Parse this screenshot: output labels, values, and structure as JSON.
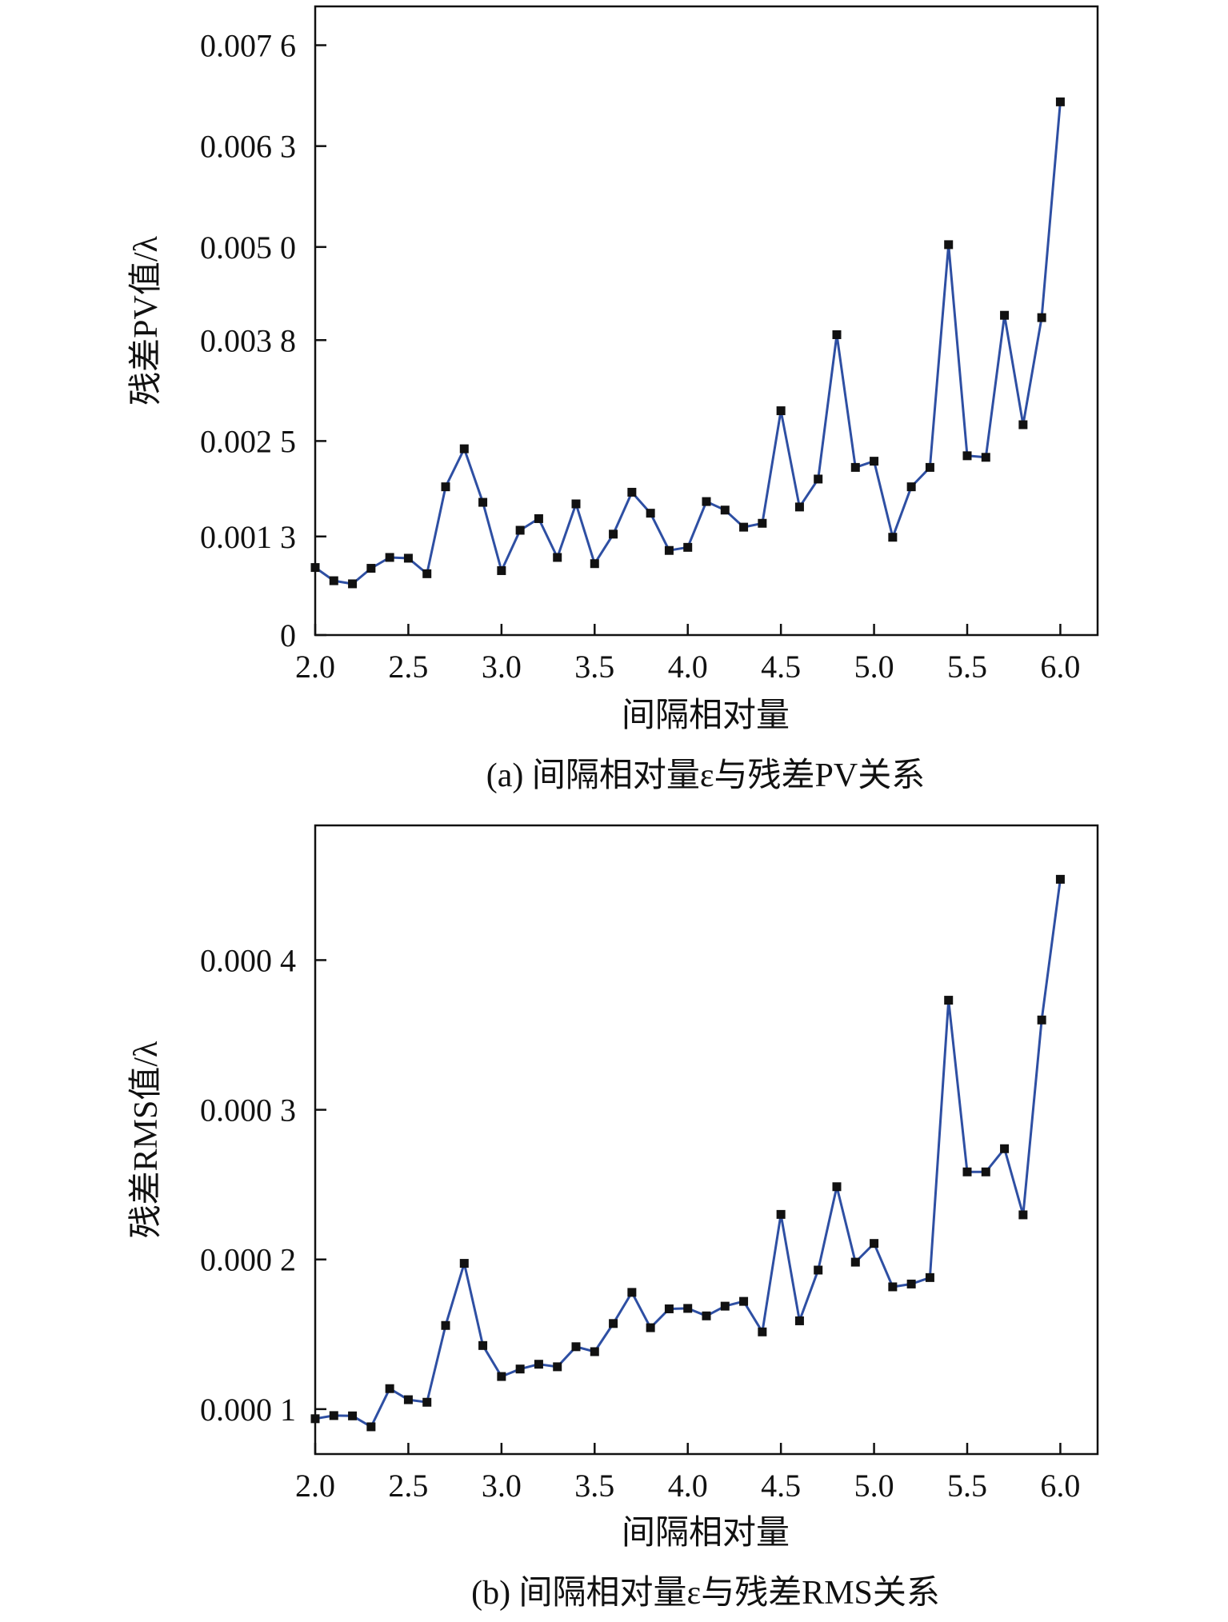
{
  "chart_data": [
    {
      "type": "line",
      "caption": "(a) 间隔相对量ε与残差PV关系",
      "xlabel": "间隔相对量",
      "ylabel": "残差PV值/λ",
      "xlim": [
        2.0,
        6.2
      ],
      "ylim": [
        0,
        0.0081
      ],
      "xticks": [
        2.0,
        2.5,
        3.0,
        3.5,
        4.0,
        4.5,
        5.0,
        5.5,
        6.0
      ],
      "xtick_labels": [
        "2.0",
        "2.5",
        "3.0",
        "3.5",
        "4.0",
        "4.5",
        "5.0",
        "5.5",
        "6.0"
      ],
      "yticks": [
        0,
        0.00127,
        0.0025,
        0.0038,
        0.005,
        0.0063,
        0.0076
      ],
      "ytick_labels": [
        "0",
        "0.001 3",
        "0.002 5",
        "0.003 8",
        "0.005 0",
        "0.006 3",
        "0.007 6"
      ],
      "line_color": "#2e4fa3",
      "marker_color": "#111111",
      "marker": "square",
      "series": [
        {
          "x": [
            2.0,
            2.1,
            2.2,
            2.3,
            2.4,
            2.5,
            2.6,
            2.7,
            2.8,
            2.9,
            3.0,
            3.1,
            3.2,
            3.3,
            3.4,
            3.5,
            3.6,
            3.7,
            3.8,
            3.9,
            4.0,
            4.1,
            4.2,
            4.3,
            4.4,
            4.5,
            4.6,
            4.7,
            4.8,
            4.9,
            5.0,
            5.1,
            5.2,
            5.3,
            5.4,
            5.5,
            5.6,
            5.7,
            5.8,
            5.9,
            6.0
          ],
          "y": [
            0.00087,
            0.0007,
            0.00066,
            0.00086,
            0.001,
            0.00099,
            0.00079,
            0.00191,
            0.0024,
            0.00171,
            0.00083,
            0.00135,
            0.0015,
            0.001,
            0.00169,
            0.00092,
            0.0013,
            0.00184,
            0.00157,
            0.00109,
            0.00113,
            0.00172,
            0.00161,
            0.00139,
            0.00144,
            0.00289,
            0.00165,
            0.00201,
            0.00387,
            0.00216,
            0.00224,
            0.00126,
            0.00191,
            0.00216,
            0.00503,
            0.00231,
            0.00229,
            0.00412,
            0.00271,
            0.00409,
            0.00687
          ]
        }
      ]
    },
    {
      "type": "line",
      "caption": "(b) 间隔相对量ε与残差RMS关系",
      "xlabel": "间隔相对量",
      "ylabel": "残差RMS值/λ",
      "xlim": [
        2.0,
        6.2
      ],
      "ylim": [
        7e-05,
        0.00049
      ],
      "xticks": [
        2.0,
        2.5,
        3.0,
        3.5,
        4.0,
        4.5,
        5.0,
        5.5,
        6.0
      ],
      "xtick_labels": [
        "2.0",
        "2.5",
        "3.0",
        "3.5",
        "4.0",
        "4.5",
        "5.0",
        "5.5",
        "6.0"
      ],
      "yticks": [
        0.0001,
        0.0002,
        0.0003,
        0.0004
      ],
      "ytick_labels": [
        "0.000 1",
        "0.000 2",
        "0.000 3",
        "0.000 4"
      ],
      "line_color": "#2e4fa3",
      "marker_color": "#111111",
      "marker": "square",
      "series": [
        {
          "x": [
            2.0,
            2.1,
            2.2,
            2.3,
            2.4,
            2.5,
            2.6,
            2.7,
            2.8,
            2.9,
            3.0,
            3.1,
            3.2,
            3.3,
            3.4,
            3.5,
            3.6,
            3.7,
            3.8,
            3.9,
            4.0,
            4.1,
            4.2,
            4.3,
            4.4,
            4.5,
            4.6,
            4.7,
            4.8,
            4.9,
            5.0,
            5.1,
            5.2,
            5.3,
            5.4,
            5.5,
            5.6,
            5.7,
            5.8,
            5.9,
            6.0
          ],
          "y": [
            9.36e-05,
            9.57e-05,
            9.55e-05,
            8.82e-05,
            0.0001137,
            0.0001063,
            0.0001046,
            0.0001559,
            0.0001974,
            0.0001425,
            0.0001218,
            0.0001268,
            0.00013,
            0.0001283,
            0.0001417,
            0.0001384,
            0.0001572,
            0.000178,
            0.0001544,
            0.000167,
            0.0001673,
            0.0001623,
            0.0001688,
            0.000172,
            0.0001516,
            0.0002301,
            0.000159,
            0.0001929,
            0.0002486,
            0.0001982,
            0.0002107,
            0.0001817,
            0.0001836,
            0.0001879,
            0.0003732,
            0.0002585,
            0.0002585,
            0.000274,
            0.0002298,
            0.00036,
            0.000454
          ]
        }
      ]
    }
  ]
}
